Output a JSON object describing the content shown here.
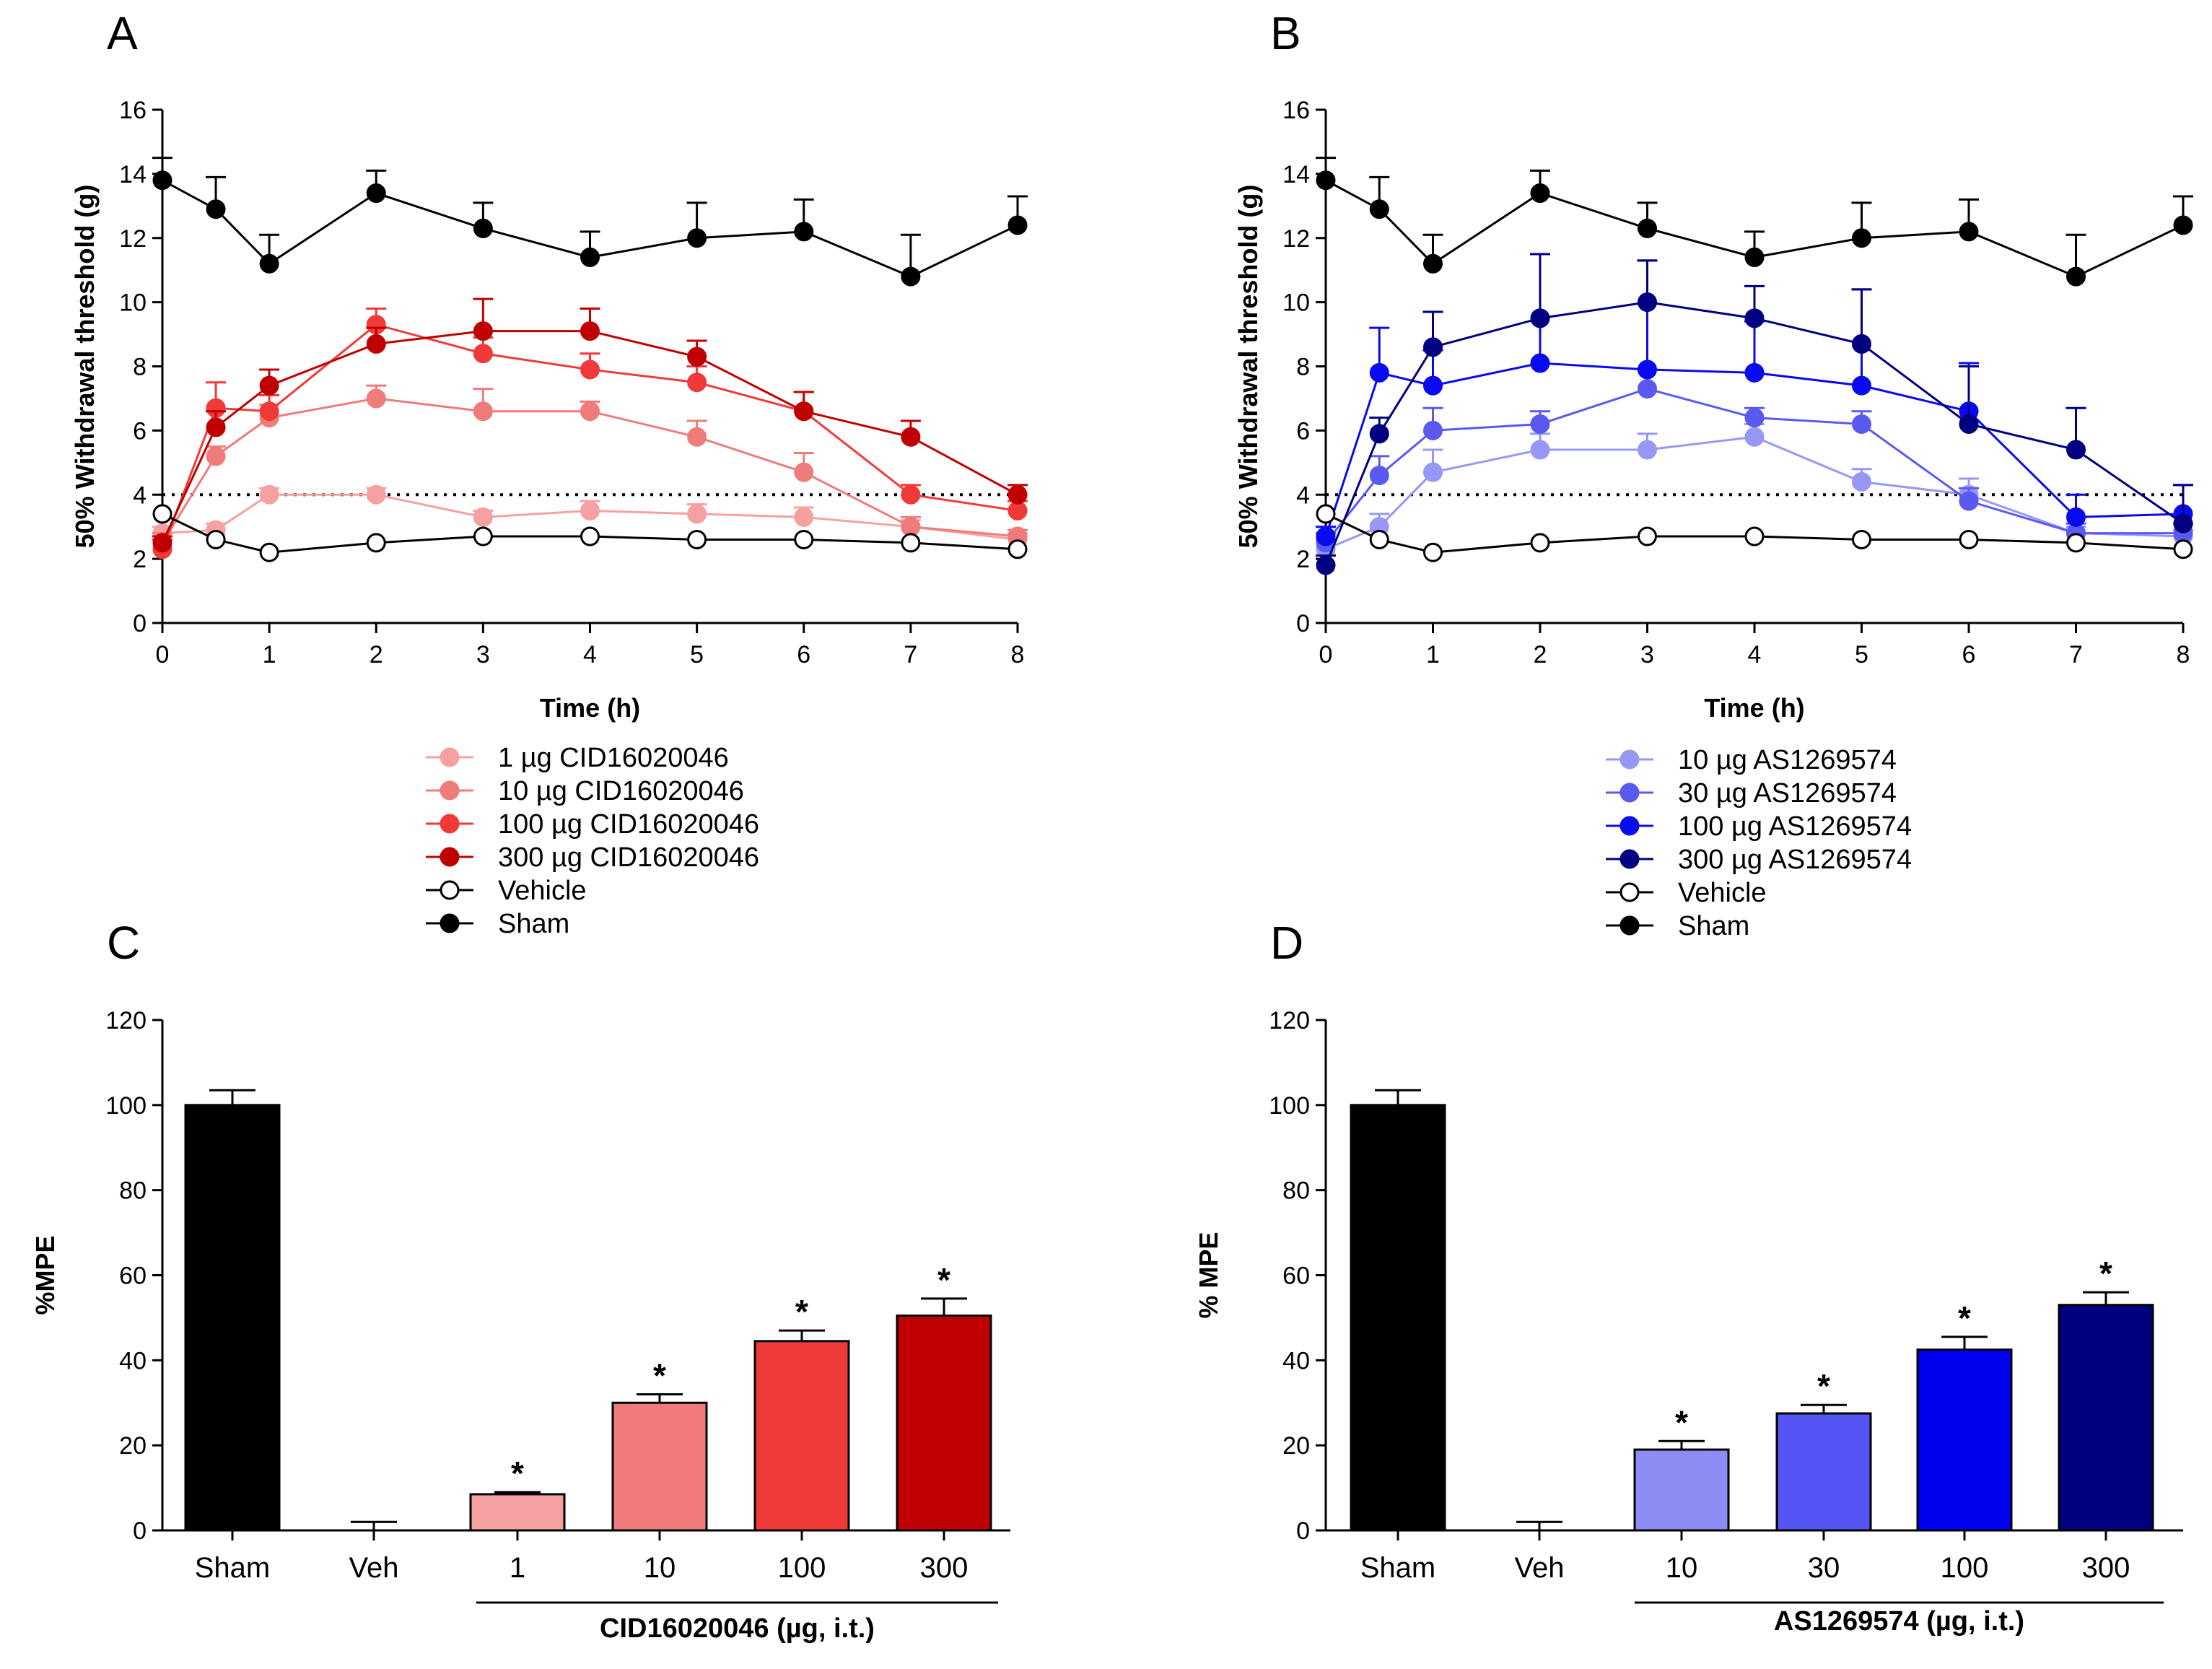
{
  "chart_data": [
    {
      "panel": "A",
      "type": "line",
      "xlabel": "Time (h)",
      "ylabel": "50% Withdrawal threshold (g)",
      "xlim": [
        0,
        8
      ],
      "ylim": [
        0,
        16
      ],
      "xticks": [
        0,
        1,
        2,
        3,
        4,
        5,
        6,
        7,
        8
      ],
      "yticks": [
        0,
        2,
        4,
        6,
        8,
        10,
        12,
        14,
        16
      ],
      "reference_line": 4,
      "x": [
        0,
        0.5,
        1,
        2,
        3,
        4,
        5,
        6,
        7,
        8
      ],
      "series": [
        {
          "name": "1 µg CID16020046",
          "color": "#f6a1a1",
          "fill": "#f6a1a1",
          "values": [
            2.8,
            2.9,
            4.0,
            4.0,
            3.3,
            3.5,
            3.4,
            3.3,
            3.0,
            2.6
          ],
          "errors": [
            0.2,
            0.2,
            0.2,
            0.2,
            0.2,
            0.3,
            0.3,
            0.3,
            0.2,
            0.2
          ]
        },
        {
          "name": "10 µg CID16020046",
          "color": "#f07b7b",
          "fill": "#f07b7b",
          "values": [
            2.5,
            5.2,
            6.4,
            7.0,
            6.6,
            6.6,
            5.8,
            4.7,
            3.0,
            2.7
          ],
          "errors": [
            0.3,
            0.3,
            0.4,
            0.4,
            0.7,
            0.3,
            0.5,
            0.6,
            0.3,
            0.2
          ]
        },
        {
          "name": "100 µg CID16020046",
          "color": "#f03a3a",
          "fill": "#f03a3a",
          "values": [
            2.3,
            6.7,
            6.6,
            9.3,
            8.4,
            7.9,
            7.5,
            6.6,
            4.0,
            3.5
          ],
          "errors": [
            0.3,
            0.8,
            0.5,
            0.5,
            0.5,
            0.5,
            0.5,
            0.6,
            0.3,
            0.3
          ]
        },
        {
          "name": "300 µg CID16020046",
          "color": "#c00000",
          "fill": "#c00000",
          "values": [
            2.5,
            6.1,
            7.4,
            8.7,
            9.1,
            9.1,
            8.3,
            6.6,
            5.8,
            4.0
          ],
          "errors": [
            0.2,
            0.5,
            0.5,
            0.5,
            1.0,
            0.7,
            0.5,
            0.6,
            0.5,
            0.3
          ]
        },
        {
          "name": "Vehicle",
          "color": "#000000",
          "fill": "#ffffff",
          "values": [
            3.4,
            2.6,
            2.2,
            2.5,
            2.7,
            2.7,
            2.6,
            2.6,
            2.5,
            2.3
          ],
          "errors": [
            0,
            0,
            0,
            0,
            0,
            0,
            0,
            0,
            0,
            0
          ]
        },
        {
          "name": "Sham",
          "color": "#000000",
          "fill": "#000000",
          "values": [
            13.8,
            12.9,
            11.2,
            13.4,
            12.3,
            11.4,
            12.0,
            12.2,
            10.8,
            12.4
          ],
          "errors": [
            0.7,
            1.0,
            0.9,
            0.7,
            0.8,
            0.8,
            1.1,
            1.0,
            1.3,
            0.9
          ]
        }
      ]
    },
    {
      "panel": "B",
      "type": "line",
      "xlabel": "Time (h)",
      "ylabel": "50% Withdrawal threshold (g)",
      "xlim": [
        0,
        8
      ],
      "ylim": [
        0,
        16
      ],
      "xticks": [
        0,
        1,
        2,
        3,
        4,
        5,
        6,
        7,
        8
      ],
      "yticks": [
        0,
        2,
        4,
        6,
        8,
        10,
        12,
        14,
        16
      ],
      "reference_line": 4,
      "x": [
        0,
        0.5,
        1,
        2,
        3,
        4,
        5,
        6,
        7,
        8
      ],
      "series": [
        {
          "name": "10 µg AS1269574",
          "color": "#9797f5",
          "fill": "#9797f5",
          "values": [
            2.3,
            3.0,
            4.7,
            5.4,
            5.4,
            5.8,
            4.4,
            4.0,
            2.8,
            2.7
          ],
          "errors": [
            0.3,
            0.4,
            0.7,
            0.5,
            0.5,
            0.4,
            0.4,
            0.5,
            0.2,
            0.2
          ]
        },
        {
          "name": "30 µg AS1269574",
          "color": "#5a5af0",
          "fill": "#5a5af0",
          "values": [
            2.5,
            4.6,
            6.0,
            6.2,
            7.3,
            6.4,
            6.2,
            3.8,
            2.8,
            2.8
          ],
          "errors": [
            0.3,
            0.6,
            0.7,
            0.4,
            0.6,
            0.3,
            0.4,
            0.4,
            0.3,
            0.3
          ]
        },
        {
          "name": "100 µg AS1269574",
          "color": "#0a0af0",
          "fill": "#0a0af0",
          "values": [
            2.7,
            7.8,
            7.4,
            8.1,
            7.9,
            7.8,
            7.4,
            6.6,
            3.3,
            3.4
          ],
          "errors": [
            0.3,
            1.4,
            1.1,
            3.4,
            3.4,
            1.6,
            3.0,
            1.5,
            0.7,
            0.9
          ]
        },
        {
          "name": "300 µg AS1269574",
          "color": "#000080",
          "fill": "#000080",
          "values": [
            1.8,
            5.9,
            8.6,
            9.5,
            10.0,
            9.5,
            8.7,
            6.2,
            5.4,
            3.1
          ],
          "errors": [
            0.3,
            0.5,
            1.1,
            2.0,
            1.3,
            1.0,
            1.7,
            1.8,
            1.3,
            1.2
          ]
        },
        {
          "name": "Vehicle",
          "color": "#000000",
          "fill": "#ffffff",
          "values": [
            3.4,
            2.6,
            2.2,
            2.5,
            2.7,
            2.7,
            2.6,
            2.6,
            2.5,
            2.3
          ],
          "errors": [
            0,
            0,
            0,
            0,
            0,
            0,
            0,
            0,
            0,
            0
          ]
        },
        {
          "name": "Sham",
          "color": "#000000",
          "fill": "#000000",
          "values": [
            13.8,
            12.9,
            11.2,
            13.4,
            12.3,
            11.4,
            12.0,
            12.2,
            10.8,
            12.4
          ],
          "errors": [
            0.7,
            1.0,
            0.9,
            0.7,
            0.8,
            0.8,
            1.1,
            1.0,
            1.3,
            0.9
          ]
        }
      ]
    },
    {
      "panel": "C",
      "type": "bar",
      "ylabel": "%MPE",
      "ylim": [
        0,
        120
      ],
      "yticks": [
        0,
        20,
        40,
        60,
        80,
        100,
        120
      ],
      "categories": [
        "Sham",
        "Veh",
        "1",
        "10",
        "100",
        "300"
      ],
      "values": [
        100,
        0,
        8.5,
        30,
        44.5,
        50.5
      ],
      "errors": [
        3.5,
        2,
        0.5,
        2,
        2.5,
        4
      ],
      "colors": [
        "#000000",
        "#ffffff",
        "#f6a1a1",
        "#f07b7b",
        "#f03a3a",
        "#c00000"
      ],
      "significance": [
        "",
        "",
        "*",
        "*",
        "*",
        "*"
      ],
      "group_label": "CID16020046 (µg, i.t.)"
    },
    {
      "panel": "D",
      "type": "bar",
      "ylabel": "% MPE",
      "ylim": [
        0,
        120
      ],
      "yticks": [
        0,
        20,
        40,
        60,
        80,
        100,
        120
      ],
      "categories": [
        "Sham",
        "Veh",
        "10",
        "30",
        "100",
        "300"
      ],
      "values": [
        100,
        0,
        19,
        27.5,
        42.5,
        53
      ],
      "errors": [
        3.5,
        2,
        2,
        2,
        3,
        3
      ],
      "colors": [
        "#000000",
        "#ffffff",
        "#8c8cf5",
        "#5555f5",
        "#0000f0",
        "#000080"
      ],
      "significance": [
        "",
        "",
        "*",
        "*",
        "*",
        "*"
      ],
      "group_label": "AS1269574 (µg, i.t.)"
    }
  ]
}
